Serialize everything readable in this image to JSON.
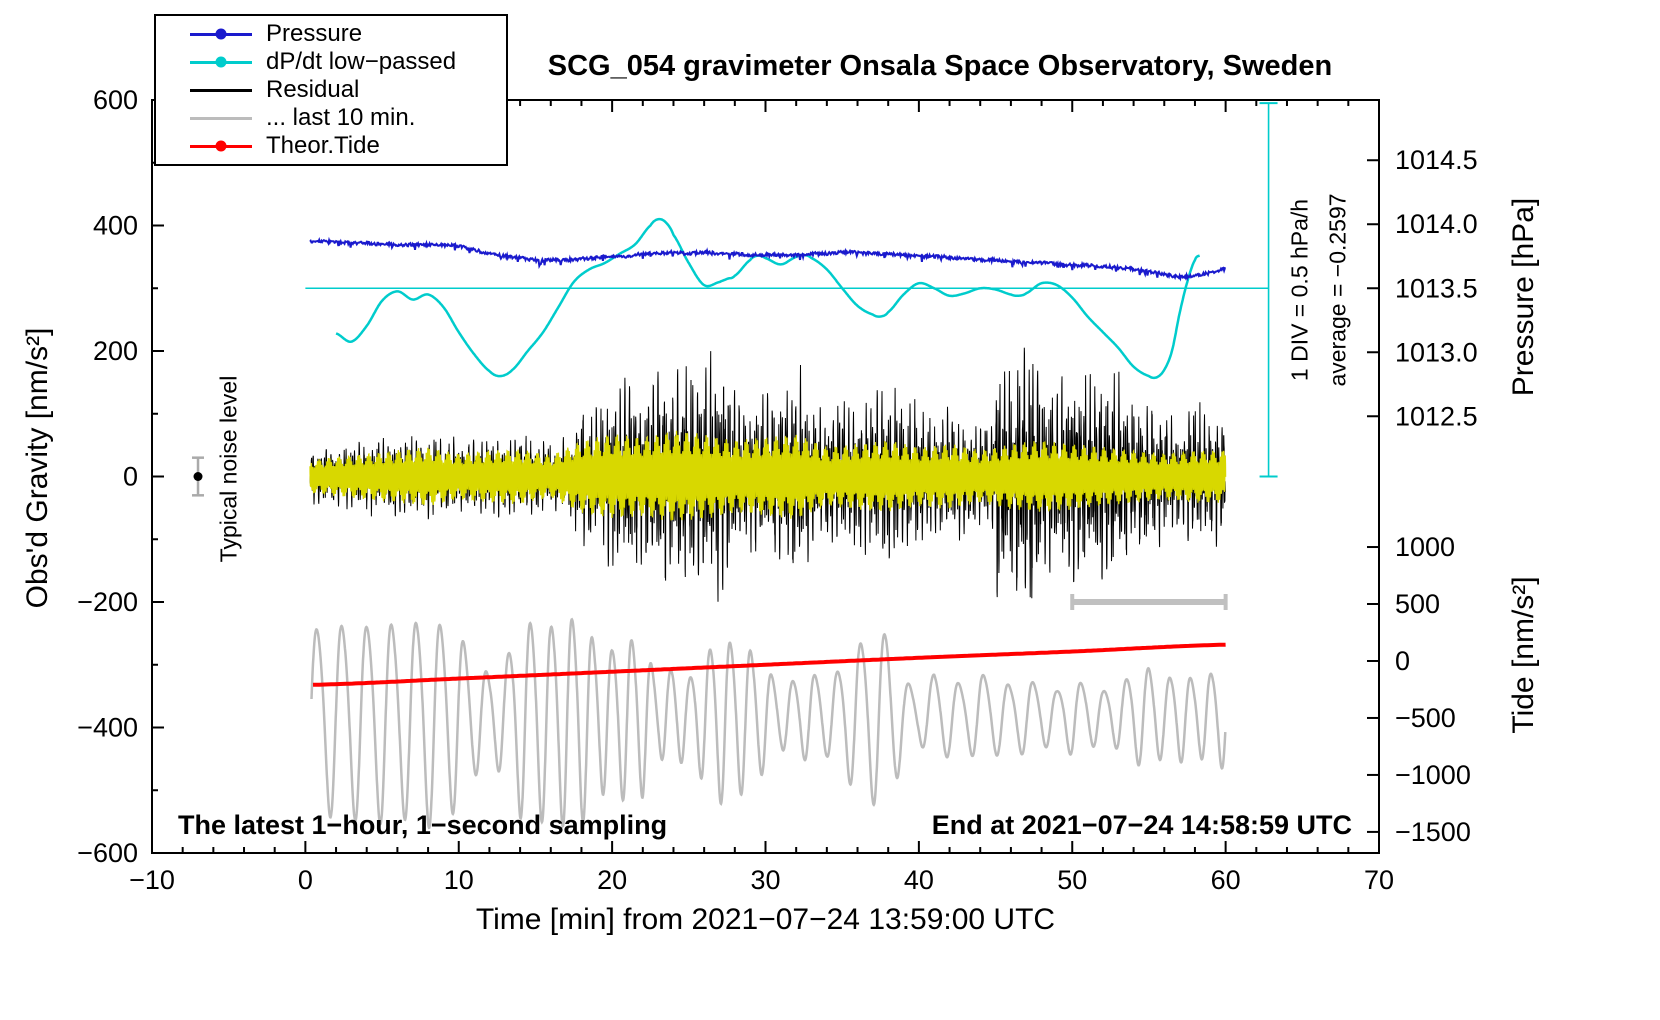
{
  "annotations": {
    "noise_label": "Typical noise level",
    "div_label": "1 DIV = 0.5 hPa/h",
    "avg_label": "average = −0.2597",
    "footer_left": "The latest 1−hour, 1−second sampling",
    "footer_right": "End at 2021−07−24 14:58:59 UTC"
  },
  "legend": [
    {
      "label": "Pressure",
      "color": "#1a1acd",
      "marker": true
    },
    {
      "label": "dP/dt low−passed",
      "color": "#00cccc",
      "marker": true
    },
    {
      "label": "Residual",
      "color": "#000000",
      "marker": false
    },
    {
      "label": "... last 10 min.",
      "color": "#bcbcbc",
      "marker": false
    },
    {
      "label": "Theor.Tide",
      "color": "#ff0000",
      "marker": true
    }
  ],
  "chart_data": {
    "type": "line",
    "title": "SCG_054 gravimeter Onsala Space Observatory, Sweden",
    "xlabel": "Time [min] from 2021−07−24 13:59:00 UTC",
    "ylabel": "Obs'd Gravity [nm/s²]",
    "y2label_top": "Pressure [hPa]",
    "y2label_bottom": "Tide [nm/s²]",
    "xlim": [
      -10,
      70
    ],
    "xticks": [
      -10,
      0,
      10,
      20,
      30,
      40,
      50,
      60,
      70
    ],
    "x_minor_step": 2,
    "ylim": [
      -600,
      600
    ],
    "yticks": [
      -600,
      -400,
      -200,
      0,
      200,
      400,
      600
    ],
    "y_minor_step": 100,
    "grid": false,
    "legend_position": "top-left",
    "pressure_axis": {
      "ticks": [
        1014.5,
        1014.0,
        1013.5,
        1013.0,
        1012.5
      ],
      "ref_hpa": 1013.5,
      "ref_gravity": 300,
      "gravity_per_hpa": 204
    },
    "tide_axis": {
      "ticks": [
        1000,
        500,
        0,
        -500,
        -1000,
        -1500
      ],
      "ref_tide": 0,
      "ref_gravity": -294,
      "gravity_per_unit": 0.1816
    },
    "reference_line_gravity": 300,
    "div_bar": {
      "x_min": 62.8,
      "gravity_top": 595,
      "gravity_bottom": 0
    },
    "noise_marker": {
      "x": -7,
      "gravity": 0,
      "error": 30
    },
    "scale_bar": {
      "x1": 50,
      "x2": 60,
      "gravity": -200
    },
    "series": {
      "pressure": {
        "axis": "pressure",
        "color": "#1a1acd",
        "x": [
          0.3,
          2,
          4,
          6,
          8,
          10,
          11,
          12,
          13,
          14,
          15,
          16,
          17,
          18,
          19,
          20,
          21,
          22,
          23,
          24,
          25,
          26,
          27,
          28,
          29,
          30,
          31,
          32,
          33,
          34,
          35,
          36,
          37,
          38,
          39,
          40,
          41,
          42,
          43,
          44,
          45,
          46,
          47,
          48,
          49,
          50,
          51,
          52,
          53,
          54,
          55,
          56,
          57,
          58,
          59,
          60
        ],
        "hpa": [
          1013.87,
          1013.86,
          1013.85,
          1013.84,
          1013.84,
          1013.83,
          1013.8,
          1013.77,
          1013.75,
          1013.74,
          1013.72,
          1013.72,
          1013.72,
          1013.73,
          1013.74,
          1013.75,
          1013.75,
          1013.77,
          1013.77,
          1013.78,
          1013.77,
          1013.78,
          1013.77,
          1013.77,
          1013.76,
          1013.76,
          1013.76,
          1013.76,
          1013.77,
          1013.77,
          1013.78,
          1013.78,
          1013.77,
          1013.77,
          1013.76,
          1013.75,
          1013.75,
          1013.74,
          1013.73,
          1013.72,
          1013.72,
          1013.71,
          1013.7,
          1013.7,
          1013.69,
          1013.68,
          1013.68,
          1013.67,
          1013.66,
          1013.65,
          1013.63,
          1013.61,
          1013.59,
          1013.6,
          1013.62,
          1013.65
        ]
      },
      "dpdt_lowpassed": {
        "axis": "gravity",
        "color": "#00cccc",
        "x": [
          2,
          3,
          4,
          5,
          6,
          7,
          8,
          9,
          10,
          11,
          12,
          12.7,
          13.5,
          14.5,
          15.5,
          16.5,
          17.5,
          18.5,
          19.5,
          20.5,
          21.5,
          22.5,
          23,
          23.5,
          24,
          25,
          26,
          27,
          27.5,
          28,
          29,
          29.5,
          30,
          31,
          32,
          32.5,
          33,
          34,
          35,
          36,
          37,
          37.5,
          38,
          39,
          40,
          41,
          42,
          43,
          44,
          45,
          46,
          46.5,
          47,
          48,
          49,
          50,
          51,
          52,
          53,
          54,
          55,
          55.5,
          56,
          56.5,
          57,
          57.5,
          58,
          58.3
        ],
        "gravity": [
          228,
          215,
          240,
          280,
          295,
          282,
          290,
          270,
          230,
          195,
          168,
          160,
          170,
          200,
          230,
          270,
          310,
          330,
          340,
          355,
          370,
          400,
          410,
          405,
          385,
          340,
          305,
          310,
          315,
          320,
          345,
          352,
          348,
          338,
          350,
          353,
          348,
          330,
          300,
          272,
          258,
          255,
          262,
          290,
          308,
          300,
          288,
          292,
          300,
          298,
          290,
          288,
          292,
          308,
          305,
          285,
          255,
          230,
          205,
          175,
          160,
          158,
          170,
          200,
          260,
          310,
          345,
          352
        ]
      },
      "theor_tide": {
        "axis": "tide",
        "color": "#ff0000",
        "x": [
          0.5,
          10,
          20,
          30,
          40,
          50,
          60
        ],
        "tide": [
          -209,
          -154,
          -94,
          -33,
          28,
          83,
          143
        ]
      },
      "residual": {
        "axis": "gravity",
        "color": "#000000",
        "envelope_x": [
          0.3,
          2,
          4,
          6,
          8,
          10,
          12,
          14,
          16,
          17,
          17.5,
          18,
          19,
          20,
          21,
          22,
          23,
          24,
          25,
          26,
          27,
          27.5,
          28,
          29,
          30,
          31,
          32,
          33,
          34,
          35,
          36,
          37,
          38,
          39,
          40,
          41,
          42,
          43,
          44,
          44.8,
          45,
          46,
          47,
          47.5,
          48,
          49,
          50,
          51,
          52,
          53,
          54,
          55,
          56,
          57,
          58,
          59,
          60
        ],
        "envelope_amp": [
          45,
          50,
          60,
          65,
          70,
          60,
          65,
          70,
          55,
          60,
          80,
          120,
          110,
          150,
          170,
          140,
          180,
          170,
          190,
          180,
          200,
          170,
          130,
          120,
          140,
          150,
          180,
          120,
          110,
          130,
          120,
          140,
          150,
          130,
          120,
          100,
          110,
          100,
          90,
          90,
          210,
          180,
          230,
          250,
          180,
          150,
          190,
          160,
          180,
          170,
          120,
          130,
          100,
          90,
          130,
          100,
          110
        ]
      },
      "residual_lowpassed": {
        "axis": "gravity",
        "color": "#d8d800",
        "envelope_x": [
          0.3,
          2,
          4,
          6,
          8,
          10,
          12,
          14,
          16,
          18,
          20,
          22,
          24,
          26,
          28,
          30,
          32,
          34,
          36,
          38,
          40,
          42,
          44,
          46,
          48,
          50,
          52,
          54,
          56,
          58,
          60
        ],
        "envelope_amp": [
          25,
          30,
          35,
          40,
          45,
          35,
          40,
          42,
          32,
          55,
          65,
          60,
          70,
          65,
          55,
          60,
          65,
          45,
          50,
          55,
          45,
          50,
          40,
          50,
          55,
          50,
          45,
          40,
          35,
          40,
          40
        ]
      },
      "gray_wave": {
        "axis": "gravity",
        "color": "#bcbcbc",
        "center": -380,
        "period_min": 1.45,
        "envelope_x": [
          0.4,
          2,
          3,
          4,
          5,
          6,
          7,
          8,
          9,
          10,
          11,
          12,
          13,
          14,
          15,
          16,
          17,
          18,
          19,
          20,
          21,
          22,
          23,
          24,
          25,
          26,
          27,
          28,
          29,
          30,
          31,
          32,
          33,
          34,
          35,
          36,
          37,
          38,
          39,
          40,
          41,
          42,
          43,
          44,
          45,
          46,
          47,
          48,
          49,
          50,
          51,
          52,
          53,
          54,
          55,
          56,
          57,
          58,
          59,
          60
        ],
        "envelope_amp": [
          145,
          150,
          155,
          150,
          160,
          150,
          155,
          165,
          150,
          140,
          90,
          70,
          90,
          150,
          160,
          150,
          165,
          160,
          120,
          110,
          130,
          120,
          60,
          80,
          60,
          100,
          130,
          120,
          110,
          80,
          50,
          60,
          70,
          60,
          80,
          120,
          130,
          140,
          60,
          40,
          70,
          60,
          50,
          70,
          60,
          50,
          60,
          50,
          40,
          60,
          50,
          40,
          50,
          70,
          80,
          60,
          70,
          60,
          70,
          80
        ]
      }
    }
  }
}
